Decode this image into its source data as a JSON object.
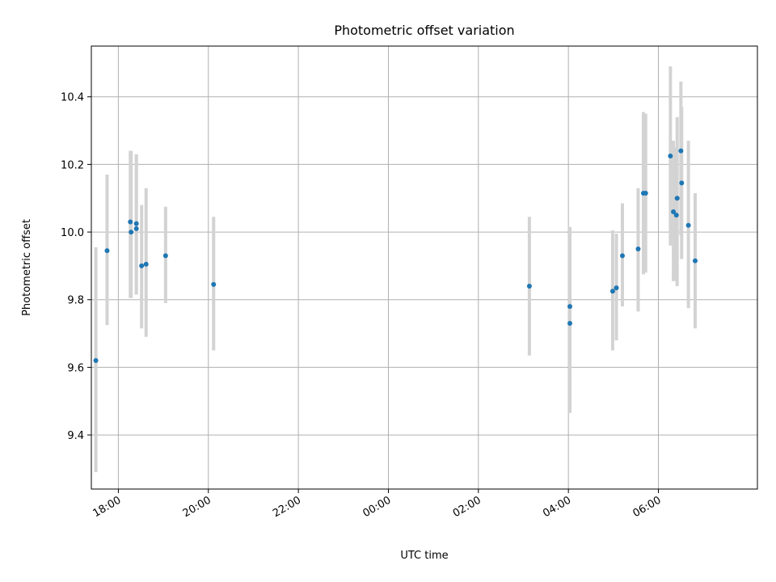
{
  "chart_data": {
    "type": "scatter",
    "title": "Photometric offset variation",
    "xlabel": "UTC time",
    "ylabel": "Photometric offset",
    "grid": true,
    "x_axis": {
      "kind": "time",
      "range": [
        "17:24",
        "08:12"
      ],
      "ticks": [
        "18:00",
        "20:00",
        "22:00",
        "00:00",
        "02:00",
        "04:00",
        "06:00"
      ]
    },
    "y_axis": {
      "range": [
        9.24,
        10.55
      ],
      "ticks": [
        "9.4",
        "9.6",
        "9.8",
        "10.0",
        "10.2",
        "10.4"
      ]
    },
    "errorbar_color": "#d3d3d3",
    "marker_color": "#1f77b4",
    "points": [
      {
        "t": "17:30",
        "y": 9.62,
        "lo": 9.29,
        "hi": 9.955
      },
      {
        "t": "17:45",
        "y": 9.945,
        "lo": 9.725,
        "hi": 10.17
      },
      {
        "t": "18:16",
        "y": 10.03,
        "lo": 9.805,
        "hi": 10.24
      },
      {
        "t": "18:17",
        "y": 10.0,
        "lo": 9.805,
        "hi": 10.24
      },
      {
        "t": "18:24",
        "y": 10.025,
        "lo": 9.815,
        "hi": 10.23
      },
      {
        "t": "18:24",
        "y": 10.01,
        "lo": 9.815,
        "hi": 10.23
      },
      {
        "t": "18:31",
        "y": 9.9,
        "lo": 9.715,
        "hi": 10.08
      },
      {
        "t": "18:37",
        "y": 9.905,
        "lo": 9.69,
        "hi": 10.13
      },
      {
        "t": "19:03",
        "y": 9.93,
        "lo": 9.79,
        "hi": 10.075
      },
      {
        "t": "20:07",
        "y": 9.845,
        "lo": 9.65,
        "hi": 10.045
      },
      {
        "t": "03:08",
        "y": 9.84,
        "lo": 9.635,
        "hi": 10.045
      },
      {
        "t": "04:02",
        "y": 9.78,
        "lo": 9.565,
        "hi": 10.015
      },
      {
        "t": "04:02",
        "y": 9.73,
        "lo": 9.465,
        "hi": 9.98
      },
      {
        "t": "04:59",
        "y": 9.825,
        "lo": 9.65,
        "hi": 10.005
      },
      {
        "t": "05:04",
        "y": 9.835,
        "lo": 9.68,
        "hi": 9.995
      },
      {
        "t": "05:12",
        "y": 9.93,
        "lo": 9.78,
        "hi": 10.085
      },
      {
        "t": "05:33",
        "y": 9.95,
        "lo": 9.765,
        "hi": 10.13
      },
      {
        "t": "05:40",
        "y": 10.115,
        "lo": 9.875,
        "hi": 10.355
      },
      {
        "t": "05:43",
        "y": 10.115,
        "lo": 9.88,
        "hi": 10.35
      },
      {
        "t": "06:16",
        "y": 10.225,
        "lo": 9.96,
        "hi": 10.49
      },
      {
        "t": "06:20",
        "y": 10.06,
        "lo": 9.855,
        "hi": 10.27
      },
      {
        "t": "06:24",
        "y": 10.05,
        "lo": 9.855,
        "hi": 10.25
      },
      {
        "t": "06:25",
        "y": 10.1,
        "lo": 9.84,
        "hi": 10.34
      },
      {
        "t": "06:30",
        "y": 10.24,
        "lo": 9.99,
        "hi": 10.445
      },
      {
        "t": "06:31",
        "y": 10.145,
        "lo": 9.92,
        "hi": 10.37
      },
      {
        "t": "06:40",
        "y": 10.02,
        "lo": 9.775,
        "hi": 10.27
      },
      {
        "t": "06:49",
        "y": 9.915,
        "lo": 9.715,
        "hi": 10.115
      }
    ]
  }
}
